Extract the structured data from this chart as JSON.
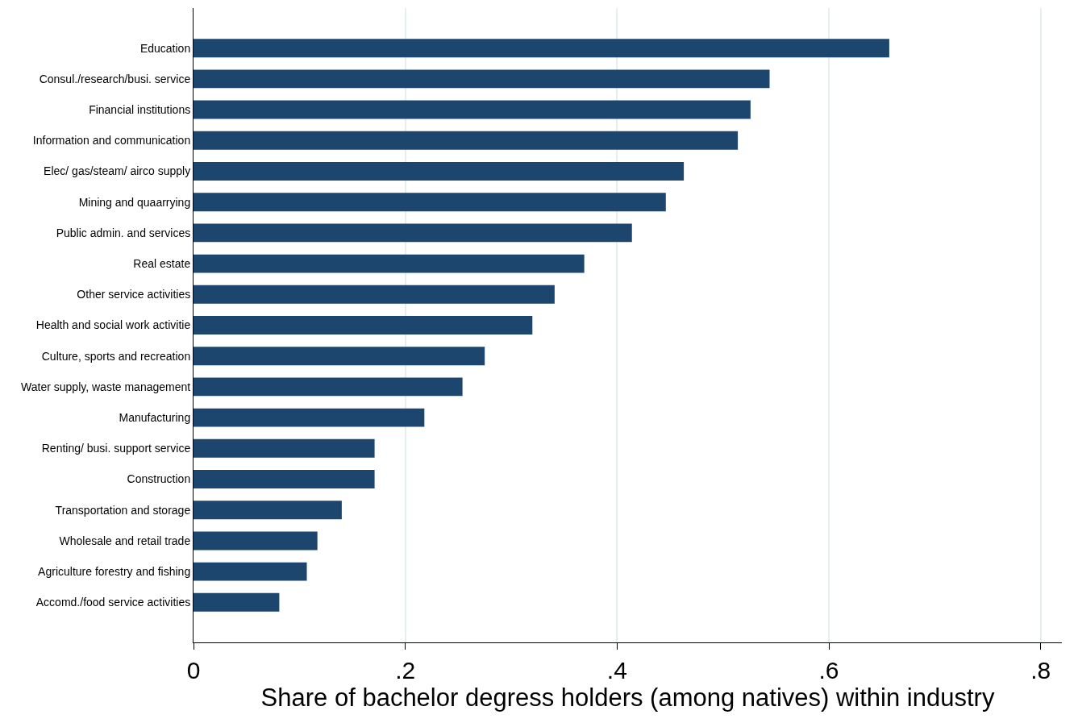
{
  "chart_data": {
    "type": "bar",
    "orientation": "horizontal",
    "xlabel": "Share of bachelor degress holders (among natives) within industry",
    "categories": [
      "Education",
      "Consul./research/busi. service",
      "Financial institutions",
      "Information and communication",
      "Elec/ gas/steam/ airco supply",
      "Mining and quaarrying",
      "Public admin. and services",
      "Real estate",
      "Other service activities",
      "Health and social work activitie",
      "Culture, sports and recreation",
      "Water supply, waste management",
      "Manufacturing",
      "Renting/ busi. support service",
      "Construction",
      "Transportation and storage",
      "Wholesale and retail trade",
      "Agriculture forestry and fishing",
      "Accomd./food service activities"
    ],
    "values": [
      0.657,
      0.544,
      0.526,
      0.514,
      0.463,
      0.446,
      0.414,
      0.369,
      0.341,
      0.32,
      0.275,
      0.254,
      0.218,
      0.171,
      0.171,
      0.14,
      0.117,
      0.107,
      0.081
    ],
    "color": "#1c466e",
    "xlim": [
      0,
      0.82
    ],
    "xticks": [
      0,
      {
        "value": 0.2,
        "label": ".2"
      },
      {
        "value": 0.4,
        "label": ".4"
      },
      {
        "value": 0.6,
        "label": ".6"
      },
      {
        "value": 0.8,
        "label": ".8"
      }
    ],
    "grid": "x"
  }
}
